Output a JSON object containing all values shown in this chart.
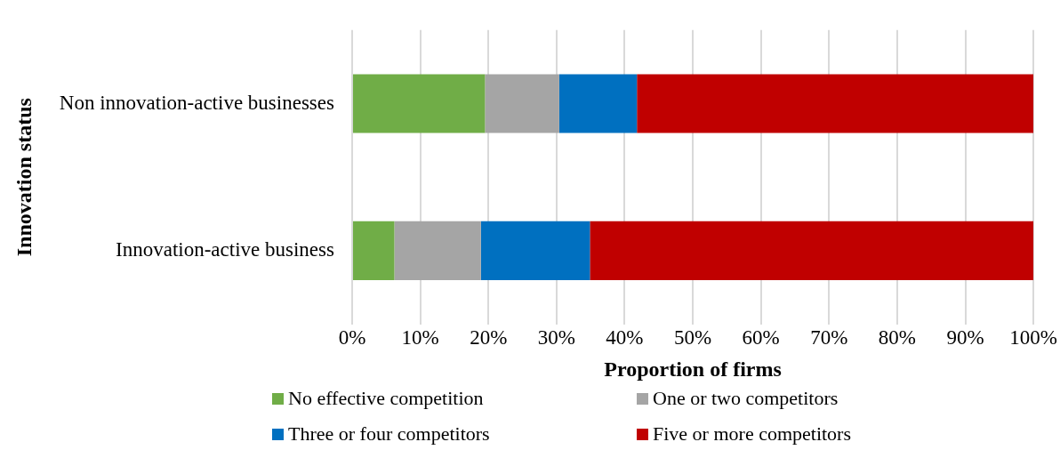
{
  "chart_data": {
    "type": "bar",
    "orientation": "horizontal",
    "stacked": true,
    "xlabel": "Proportion of firms",
    "ylabel": "Innovation status",
    "categories": [
      "Non innovation-active businesses",
      "Innovation-active business"
    ],
    "series": [
      {
        "name": "No effective competition",
        "color": "#70ad47",
        "values": [
          19.5,
          6.2
        ]
      },
      {
        "name": "One or two competitors",
        "color": "#a5a5a5",
        "values": [
          10.9,
          12.7
        ]
      },
      {
        "name": "Three or four competitors",
        "color": "#0070c0",
        "values": [
          11.4,
          16.0
        ]
      },
      {
        "name": "Five or more competitors",
        "color": "#c00000",
        "values": [
          58.2,
          65.1
        ]
      }
    ],
    "xlim": [
      0,
      100
    ],
    "xticks": [
      {
        "value": 0,
        "label": "0%"
      },
      {
        "value": 10,
        "label": "10%"
      },
      {
        "value": 20,
        "label": "20%"
      },
      {
        "value": 30,
        "label": "30%"
      },
      {
        "value": 40,
        "label": "40%"
      },
      {
        "value": 50,
        "label": "50%"
      },
      {
        "value": 60,
        "label": "60%"
      },
      {
        "value": 70,
        "label": "70%"
      },
      {
        "value": 80,
        "label": "80%"
      },
      {
        "value": 90,
        "label": "90%"
      },
      {
        "value": 100,
        "label": "100%"
      }
    ],
    "grid": "x",
    "legend": "bottom"
  }
}
